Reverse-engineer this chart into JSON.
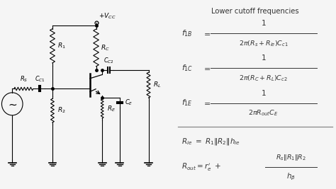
{
  "title": "Lower cutoff frequencies",
  "bg_color": "#f5f5f5",
  "formula_bg": "#d0d0d0",
  "text_color": "#333333",
  "fig_w": 4.74,
  "fig_h": 2.67,
  "dpi": 100
}
